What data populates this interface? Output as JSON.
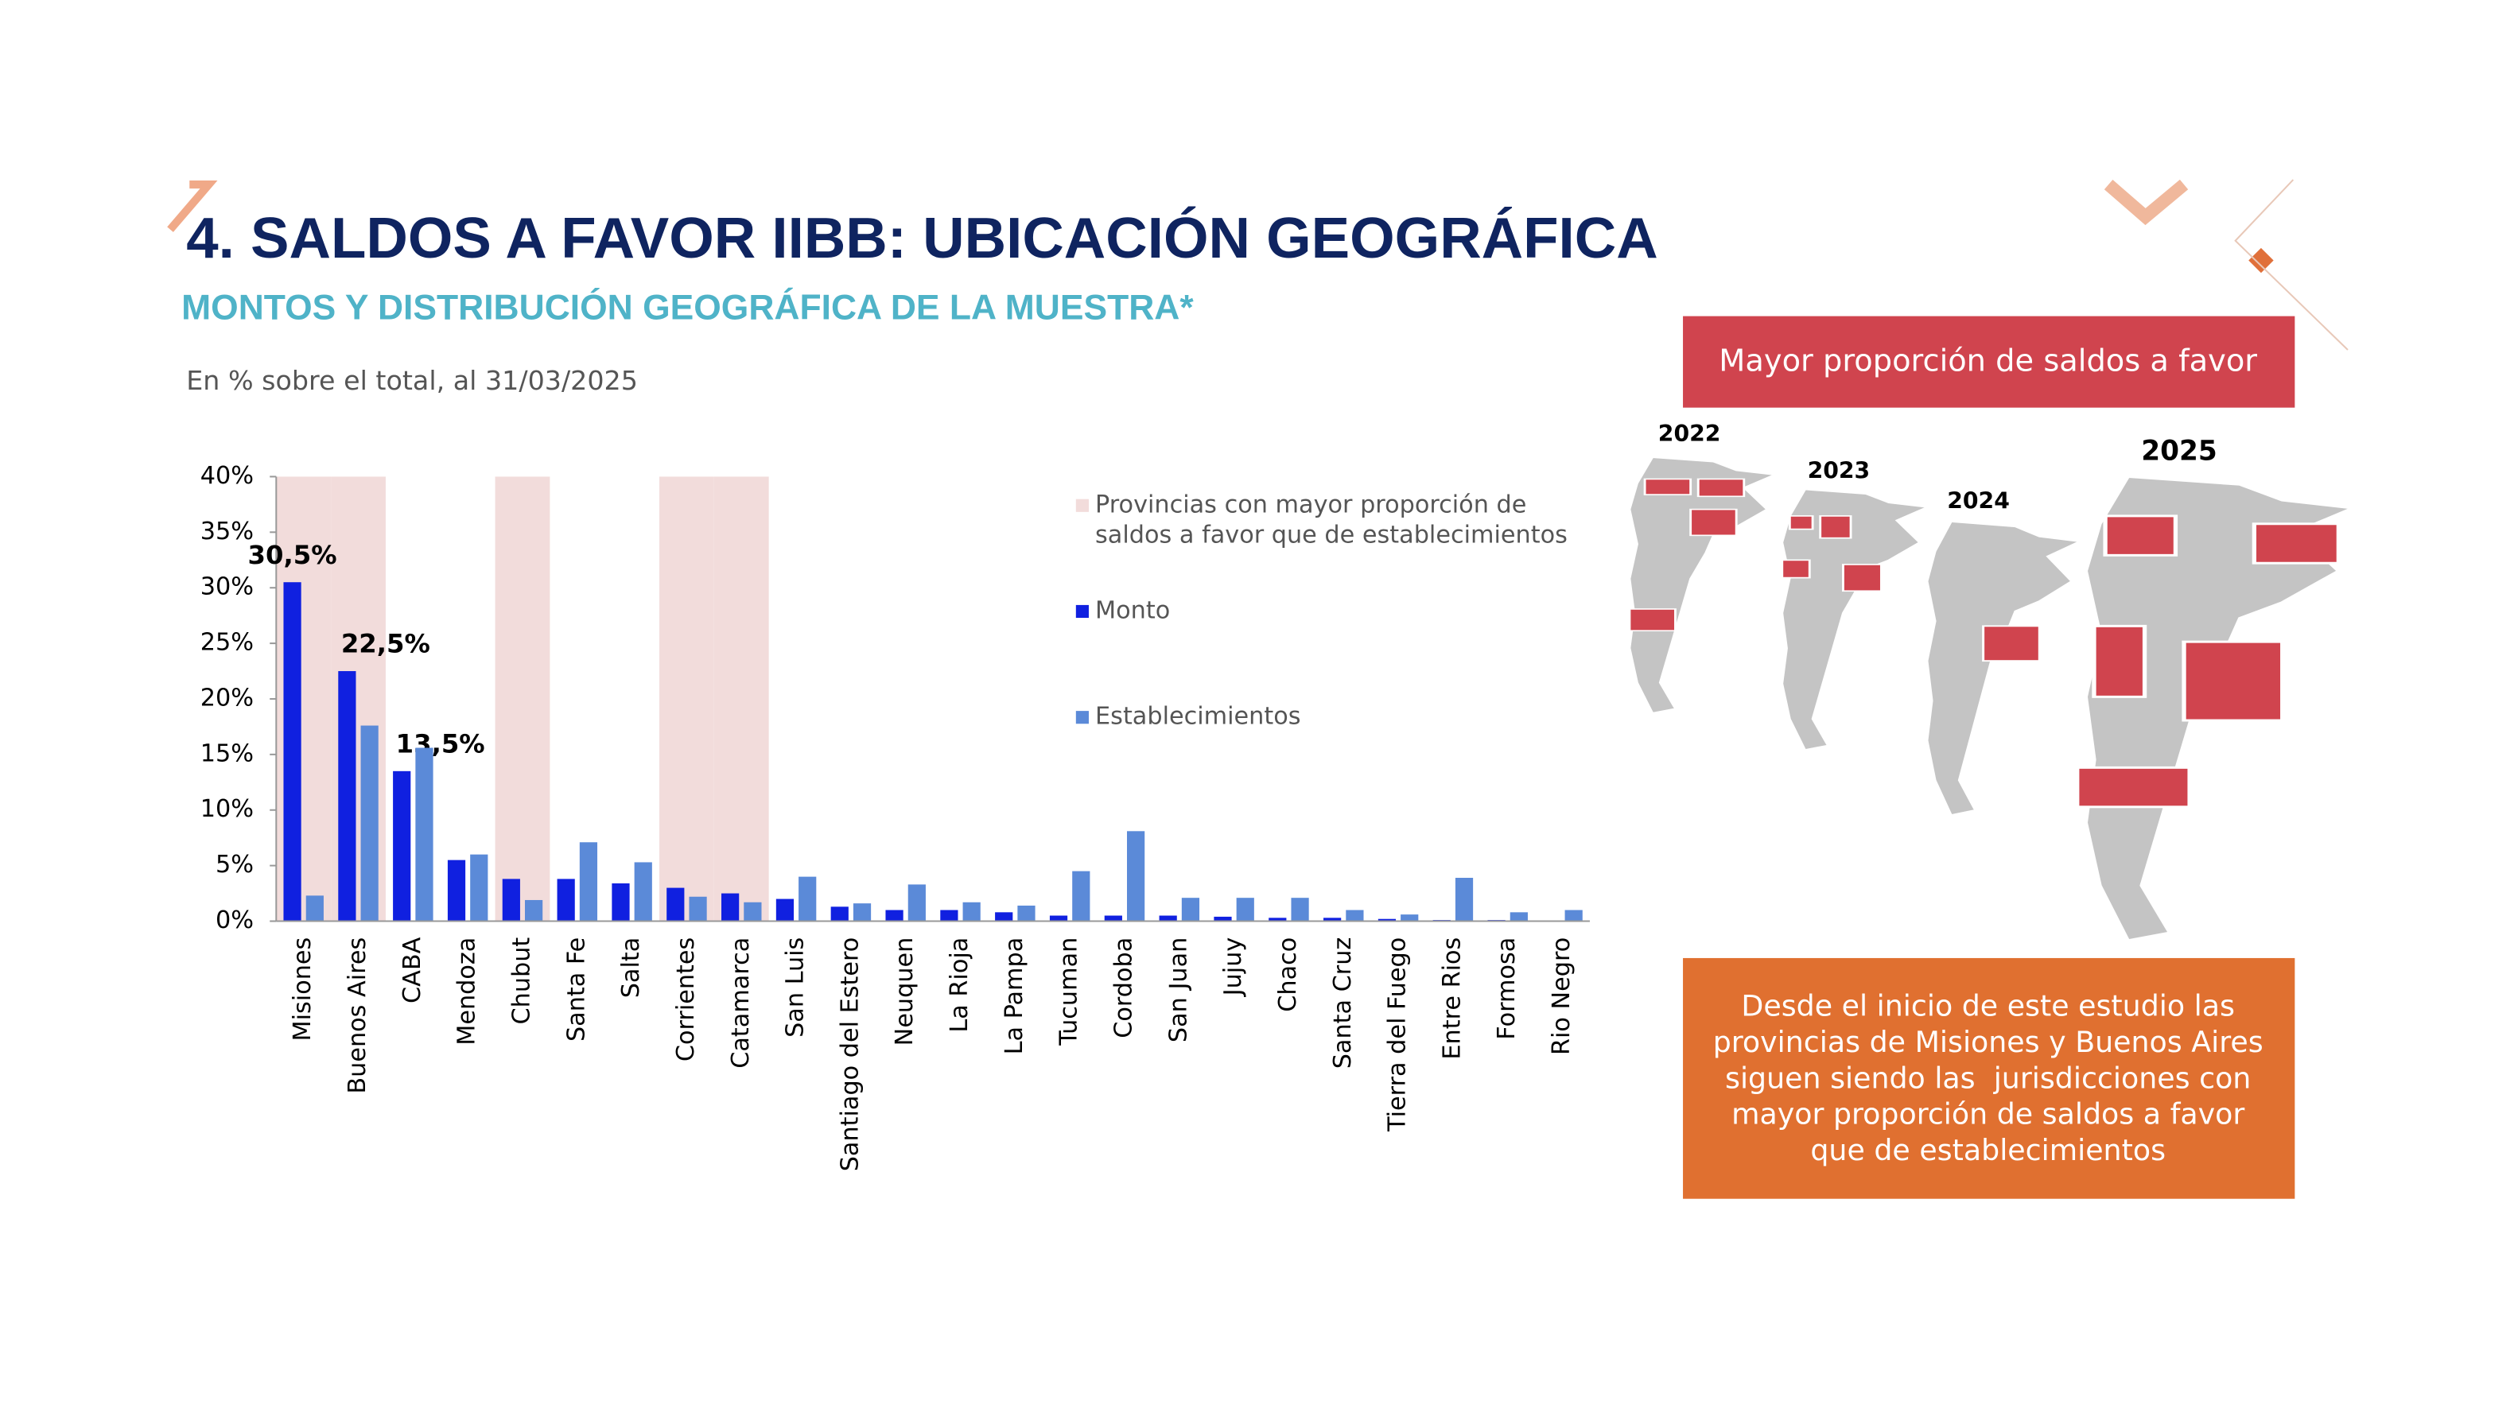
{
  "header": {
    "title": "4. SALDOS A FAVOR IIBB: UBICACIÓN GEOGRÁFICA",
    "subtitle": "MONTOS Y DISTRIBUCIÓN GEOGRÁFICA DE LA MUESTRA*"
  },
  "chart_data": {
    "type": "bar",
    "subtitle": "En % sobre el total, al 31/03/2025",
    "categories": [
      "Misiones",
      "Buenos Aires",
      "CABA",
      "Mendoza",
      "Chubut",
      "Santa Fe",
      "Salta",
      "Corrientes",
      "Catamarca",
      "San Luis",
      "Santiago del Estero",
      "Neuquen",
      "La Rioja",
      "La Pampa",
      "Tucuman",
      "Cordoba",
      "San Juan",
      "Jujuy",
      "Chaco",
      "Santa Cruz",
      "Tierra del Fuego",
      "Entre Rios",
      "Formosa",
      "Rio Negro"
    ],
    "series": [
      {
        "name": "Monto",
        "color": "#1020e0",
        "values": [
          30.5,
          22.5,
          13.5,
          5.5,
          3.8,
          3.8,
          3.4,
          3.0,
          2.5,
          2.0,
          1.3,
          1.0,
          1.0,
          0.8,
          0.5,
          0.5,
          0.5,
          0.4,
          0.3,
          0.3,
          0.2,
          0.1,
          0.1,
          0
        ],
        "value_labels": [
          "30,5%",
          "22,5%",
          "13,5%",
          null,
          null,
          null,
          null,
          null,
          null,
          null,
          null,
          null,
          null,
          null,
          null,
          null,
          null,
          null,
          null,
          null,
          null,
          null,
          null,
          null
        ]
      },
      {
        "name": "Establecimientos",
        "color": "#5b8ad8",
        "values": [
          2.3,
          17.6,
          15.6,
          6.0,
          1.9,
          7.1,
          5.3,
          2.2,
          1.7,
          4.0,
          1.6,
          3.3,
          1.7,
          1.4,
          4.5,
          8.1,
          2.1,
          2.1,
          2.1,
          1.0,
          0.6,
          3.9,
          0.8,
          1.0
        ]
      }
    ],
    "highlight": {
      "name": [
        "Provincias con mayor proporción de",
        "saldos a favor que de establecimientos"
      ],
      "color": "#f2dcdb",
      "indices": [
        0,
        1,
        4,
        7,
        8
      ]
    },
    "ylim": [
      0,
      40
    ],
    "yticks": [
      {
        "value": 0,
        "label": "0%"
      },
      {
        "value": 5,
        "label": "5%"
      },
      {
        "value": 10,
        "label": "10%"
      },
      {
        "value": 15,
        "label": "15%"
      },
      {
        "value": 20,
        "label": "20%"
      },
      {
        "value": 25,
        "label": "25%"
      },
      {
        "value": 30,
        "label": "30%"
      },
      {
        "value": 35,
        "label": "35%"
      },
      {
        "value": 40,
        "label": "40%"
      }
    ],
    "grid": false
  },
  "side": {
    "banner": "Mayor proporción de saldos a favor",
    "years": [
      "2022",
      "2023",
      "2024",
      "2025"
    ],
    "callout": [
      "Desde el inicio de este estudio las",
      "provincias de Misiones y Buenos Aires",
      "siguen siendo las  jurisdicciones con",
      "mayor proporción de saldos a favor",
      "que de establecimientos"
    ]
  }
}
